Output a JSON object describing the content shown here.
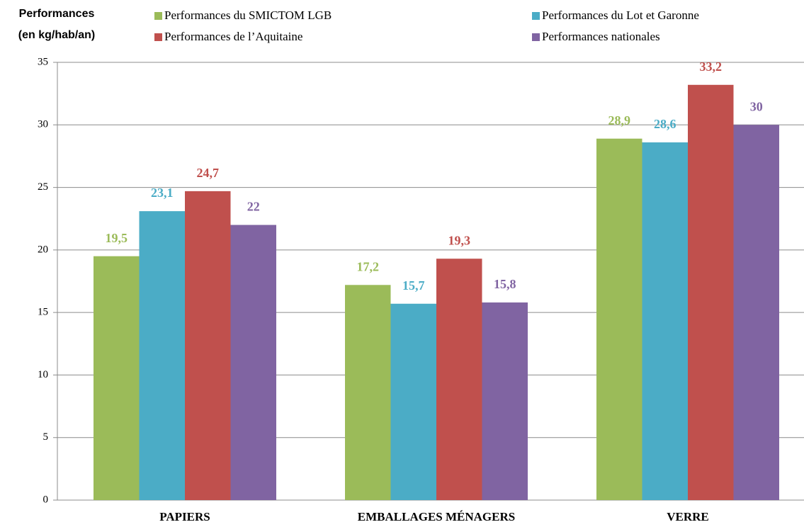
{
  "chart_data": {
    "type": "bar",
    "ylabel": [
      "Performances",
      "(en kg/hab/an)"
    ],
    "categories": [
      "PAPIERS",
      "EMBALLAGES MÉNAGERS",
      "VERRE"
    ],
    "series": [
      {
        "name": "Performances du SMICTOM LGB",
        "color": "#9bbb59",
        "values": [
          19.5,
          17.2,
          28.9
        ],
        "value_labels": [
          "19,5",
          "17,2",
          "28,9"
        ]
      },
      {
        "name": "Performances du Lot et Garonne",
        "color": "#4bacc6",
        "values": [
          23.1,
          15.7,
          28.6
        ],
        "value_labels": [
          "23,1",
          "15,7",
          "28,6"
        ]
      },
      {
        "name": "Performances de l’Aquitaine",
        "color": "#c0504d",
        "values": [
          24.7,
          19.3,
          33.2
        ],
        "value_labels": [
          "24,7",
          "19,3",
          "33,2"
        ]
      },
      {
        "name": "Performances nationales",
        "color": "#8064a2",
        "values": [
          22,
          15.8,
          30
        ],
        "value_labels": [
          "22",
          "15,8",
          "30"
        ]
      }
    ],
    "ylim": [
      0,
      35
    ],
    "yticks": [
      0,
      5,
      10,
      15,
      20,
      25,
      30,
      35
    ],
    "grid": true
  }
}
